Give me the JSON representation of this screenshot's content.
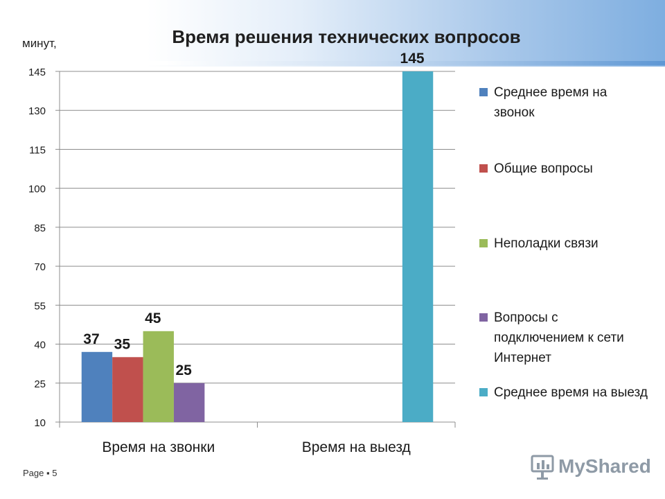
{
  "slide": {
    "title": "Время решения технических вопросов",
    "unit_label": "минут,",
    "footer": "Page ▪ 5",
    "watermark": "MyShared"
  },
  "chart_data": {
    "type": "bar",
    "title": "Время решения технических вопросов",
    "ylabel": "минут,",
    "xlabel": "",
    "ylim": [
      10,
      145
    ],
    "yticks": [
      10,
      25,
      40,
      55,
      70,
      85,
      100,
      115,
      130,
      145
    ],
    "grid": true,
    "legend_position": "right",
    "categories": [
      "Время на звонки",
      "Время на выезд"
    ],
    "series": [
      {
        "name": "Среднее время на звонок",
        "color": "#4f81bd",
        "values": [
          37,
          null
        ]
      },
      {
        "name": "Общие вопросы",
        "color": "#c0504d",
        "values": [
          35,
          null
        ]
      },
      {
        "name": "Неполадки связи",
        "color": "#9bbb59",
        "values": [
          45,
          null
        ]
      },
      {
        "name": "Вопросы с подключением к сети Интернет",
        "color": "#8064a2",
        "values": [
          25,
          null
        ]
      },
      {
        "name": "Среднее время на выезд",
        "color": "#4bacc6",
        "values": [
          null,
          145
        ]
      }
    ]
  }
}
